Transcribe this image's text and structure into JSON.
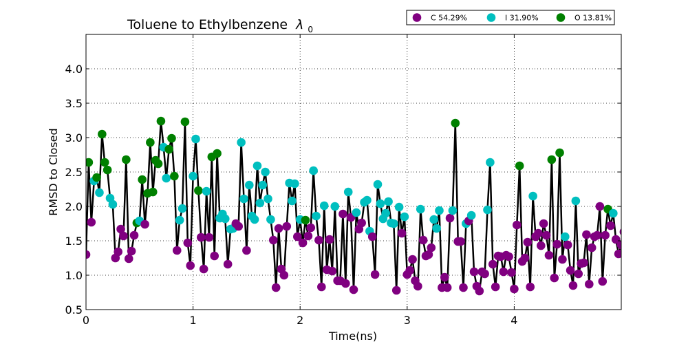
{
  "chart_data": {
    "type": "scatter",
    "title": "Toluene to Ethylbenzene",
    "title_symbol": "λ",
    "title_subscript": "0",
    "xlabel": "Time(ns)",
    "ylabel": "RMSD to Closed",
    "xlim": [
      0,
      5
    ],
    "ylim": [
      0.5,
      4.5
    ],
    "x_ticks": [
      "0",
      "1",
      "2",
      "3",
      "4"
    ],
    "y_ticks": [
      "0.5",
      "1.0",
      "1.5",
      "2.0",
      "2.5",
      "3.0",
      "3.5",
      "4.0"
    ],
    "grid": true,
    "legend_position": "top-right",
    "line_color": "#000000",
    "series": [
      {
        "name": "C 54.29%",
        "color": "#800080"
      },
      {
        "name": "I 31.90%",
        "color": "#00BFBF"
      },
      {
        "name": "O 13.81%",
        "color": "#008000"
      }
    ],
    "points": [
      [
        0.0,
        1.3,
        "C"
      ],
      [
        0.025,
        2.64,
        "O"
      ],
      [
        0.05,
        1.77,
        "C"
      ],
      [
        0.075,
        2.37,
        "I"
      ],
      [
        0.1,
        2.42,
        "O"
      ],
      [
        0.125,
        2.2,
        "I"
      ],
      [
        0.15,
        3.05,
        "O"
      ],
      [
        0.175,
        2.64,
        "O"
      ],
      [
        0.2,
        2.53,
        "O"
      ],
      [
        0.225,
        2.12,
        "I"
      ],
      [
        0.25,
        2.03,
        "I"
      ],
      [
        0.275,
        1.25,
        "C"
      ],
      [
        0.3,
        1.34,
        "C"
      ],
      [
        0.325,
        1.67,
        "C"
      ],
      [
        0.35,
        1.57,
        "C"
      ],
      [
        0.375,
        2.68,
        "O"
      ],
      [
        0.4,
        1.24,
        "C"
      ],
      [
        0.425,
        1.35,
        "C"
      ],
      [
        0.45,
        1.58,
        "C"
      ],
      [
        0.475,
        1.76,
        "O"
      ],
      [
        0.5,
        1.79,
        "I"
      ],
      [
        0.525,
        2.39,
        "O"
      ],
      [
        0.55,
        1.74,
        "C"
      ],
      [
        0.575,
        2.19,
        "O"
      ],
      [
        0.6,
        2.93,
        "O"
      ],
      [
        0.625,
        2.21,
        "O"
      ],
      [
        0.65,
        2.67,
        "O"
      ],
      [
        0.675,
        2.62,
        "O"
      ],
      [
        0.7,
        3.24,
        "O"
      ],
      [
        0.725,
        2.86,
        "I"
      ],
      [
        0.75,
        2.41,
        "I"
      ],
      [
        0.775,
        2.83,
        "O"
      ],
      [
        0.8,
        2.99,
        "O"
      ],
      [
        0.825,
        2.44,
        "O"
      ],
      [
        0.85,
        1.36,
        "C"
      ],
      [
        0.875,
        1.8,
        "I"
      ],
      [
        0.9,
        1.97,
        "I"
      ],
      [
        0.925,
        3.23,
        "O"
      ],
      [
        0.95,
        1.47,
        "C"
      ],
      [
        0.975,
        1.14,
        "C"
      ],
      [
        1.0,
        2.44,
        "I"
      ],
      [
        1.025,
        2.98,
        "I"
      ],
      [
        1.05,
        2.23,
        "O"
      ],
      [
        1.075,
        1.55,
        "C"
      ],
      [
        1.1,
        1.09,
        "C"
      ],
      [
        1.125,
        2.22,
        "I"
      ],
      [
        1.15,
        1.55,
        "C"
      ],
      [
        1.175,
        2.72,
        "O"
      ],
      [
        1.2,
        1.28,
        "C"
      ],
      [
        1.225,
        2.77,
        "O"
      ],
      [
        1.25,
        1.83,
        "I"
      ],
      [
        1.275,
        1.89,
        "I"
      ],
      [
        1.3,
        1.82,
        "I"
      ],
      [
        1.325,
        1.16,
        "C"
      ],
      [
        1.35,
        1.67,
        "I"
      ],
      [
        1.375,
        1.68,
        "I"
      ],
      [
        1.4,
        1.75,
        "C"
      ],
      [
        1.425,
        1.71,
        "C"
      ],
      [
        1.45,
        2.93,
        "I"
      ],
      [
        1.475,
        2.11,
        "I"
      ],
      [
        1.5,
        1.36,
        "C"
      ],
      [
        1.525,
        2.31,
        "I"
      ],
      [
        1.55,
        1.86,
        "I"
      ],
      [
        1.575,
        1.81,
        "I"
      ],
      [
        1.6,
        2.59,
        "I"
      ],
      [
        1.625,
        2.05,
        "I"
      ],
      [
        1.65,
        2.31,
        "I"
      ],
      [
        1.675,
        2.5,
        "I"
      ],
      [
        1.7,
        2.11,
        "I"
      ],
      [
        1.725,
        1.81,
        "I"
      ],
      [
        1.75,
        1.51,
        "C"
      ],
      [
        1.775,
        0.82,
        "C"
      ],
      [
        1.8,
        1.68,
        "C"
      ],
      [
        1.825,
        1.09,
        "C"
      ],
      [
        1.85,
        1.0,
        "C"
      ],
      [
        1.875,
        1.71,
        "C"
      ],
      [
        1.9,
        2.34,
        "I"
      ],
      [
        1.925,
        2.08,
        "I"
      ],
      [
        1.95,
        2.33,
        "I"
      ],
      [
        1.975,
        1.56,
        "C"
      ],
      [
        2.0,
        1.81,
        "I"
      ],
      [
        2.025,
        1.47,
        "C"
      ],
      [
        2.05,
        1.8,
        "O"
      ],
      [
        2.075,
        1.57,
        "C"
      ],
      [
        2.1,
        1.69,
        "C"
      ],
      [
        2.125,
        2.52,
        "I"
      ],
      [
        2.15,
        1.86,
        "I"
      ],
      [
        2.175,
        1.51,
        "C"
      ],
      [
        2.2,
        0.83,
        "C"
      ],
      [
        2.225,
        2.01,
        "I"
      ],
      [
        2.25,
        1.08,
        "C"
      ],
      [
        2.275,
        1.52,
        "C"
      ],
      [
        2.3,
        1.06,
        "C"
      ],
      [
        2.325,
        2.0,
        "I"
      ],
      [
        2.35,
        0.92,
        "C"
      ],
      [
        2.375,
        0.92,
        "C"
      ],
      [
        2.4,
        1.89,
        "C"
      ],
      [
        2.425,
        0.88,
        "C"
      ],
      [
        2.45,
        2.21,
        "I"
      ],
      [
        2.475,
        1.84,
        "C"
      ],
      [
        2.5,
        0.79,
        "C"
      ],
      [
        2.525,
        1.91,
        "I"
      ],
      [
        2.55,
        1.67,
        "C"
      ],
      [
        2.575,
        1.76,
        "C"
      ],
      [
        2.6,
        2.06,
        "I"
      ],
      [
        2.625,
        2.09,
        "I"
      ],
      [
        2.65,
        1.64,
        "I"
      ],
      [
        2.675,
        1.56,
        "C"
      ],
      [
        2.7,
        1.01,
        "C"
      ],
      [
        2.725,
        2.32,
        "I"
      ],
      [
        2.75,
        2.04,
        "I"
      ],
      [
        2.775,
        1.82,
        "I"
      ],
      [
        2.8,
        1.9,
        "I"
      ],
      [
        2.825,
        2.07,
        "I"
      ],
      [
        2.85,
        1.76,
        "I"
      ],
      [
        2.875,
        1.75,
        "I"
      ],
      [
        2.9,
        0.78,
        "C"
      ],
      [
        2.925,
        1.99,
        "I"
      ],
      [
        2.95,
        1.61,
        "C"
      ],
      [
        2.975,
        1.85,
        "I"
      ],
      [
        3.0,
        1.01,
        "C"
      ],
      [
        3.025,
        1.07,
        "C"
      ],
      [
        3.05,
        1.23,
        "C"
      ],
      [
        3.075,
        0.92,
        "C"
      ],
      [
        3.1,
        0.84,
        "C"
      ],
      [
        3.125,
        1.96,
        "I"
      ],
      [
        3.15,
        1.51,
        "C"
      ],
      [
        3.175,
        1.28,
        "C"
      ],
      [
        3.2,
        1.3,
        "C"
      ],
      [
        3.225,
        1.4,
        "C"
      ],
      [
        3.25,
        1.81,
        "I"
      ],
      [
        3.275,
        1.68,
        "I"
      ],
      [
        3.3,
        1.94,
        "I"
      ],
      [
        3.325,
        0.82,
        "C"
      ],
      [
        3.35,
        0.97,
        "C"
      ],
      [
        3.375,
        0.82,
        "C"
      ],
      [
        3.4,
        1.83,
        "C"
      ],
      [
        3.425,
        1.94,
        "I"
      ],
      [
        3.45,
        3.21,
        "O"
      ],
      [
        3.475,
        1.49,
        "C"
      ],
      [
        3.5,
        1.49,
        "C"
      ],
      [
        3.525,
        0.82,
        "C"
      ],
      [
        3.55,
        1.75,
        "I"
      ],
      [
        3.575,
        1.79,
        "C"
      ],
      [
        3.6,
        1.87,
        "I"
      ],
      [
        3.625,
        1.05,
        "C"
      ],
      [
        3.65,
        0.84,
        "C"
      ],
      [
        3.675,
        0.77,
        "C"
      ],
      [
        3.7,
        1.05,
        "C"
      ],
      [
        3.725,
        1.02,
        "C"
      ],
      [
        3.75,
        1.95,
        "I"
      ],
      [
        3.775,
        2.64,
        "I"
      ],
      [
        3.8,
        1.16,
        "C"
      ],
      [
        3.825,
        0.83,
        "C"
      ],
      [
        3.85,
        1.28,
        "C"
      ],
      [
        3.875,
        1.27,
        "C"
      ],
      [
        3.9,
        1.05,
        "C"
      ],
      [
        3.925,
        1.29,
        "C"
      ],
      [
        3.95,
        1.27,
        "C"
      ],
      [
        3.975,
        1.04,
        "C"
      ],
      [
        4.0,
        0.8,
        "C"
      ],
      [
        4.025,
        1.73,
        "C"
      ],
      [
        4.05,
        2.59,
        "O"
      ],
      [
        4.075,
        1.2,
        "C"
      ],
      [
        4.1,
        1.25,
        "C"
      ],
      [
        4.125,
        1.48,
        "C"
      ],
      [
        4.15,
        0.83,
        "C"
      ],
      [
        4.175,
        2.15,
        "I"
      ],
      [
        4.2,
        1.56,
        "C"
      ],
      [
        4.225,
        1.61,
        "C"
      ],
      [
        4.25,
        1.43,
        "C"
      ],
      [
        4.275,
        1.75,
        "C"
      ],
      [
        4.3,
        1.58,
        "C"
      ],
      [
        4.325,
        1.29,
        "C"
      ],
      [
        4.35,
        2.68,
        "O"
      ],
      [
        4.375,
        0.96,
        "C"
      ],
      [
        4.4,
        1.45,
        "C"
      ],
      [
        4.425,
        2.78,
        "O"
      ],
      [
        4.45,
        1.23,
        "C"
      ],
      [
        4.475,
        1.56,
        "I"
      ],
      [
        4.5,
        1.44,
        "C"
      ],
      [
        4.525,
        1.07,
        "C"
      ],
      [
        4.55,
        0.85,
        "C"
      ],
      [
        4.575,
        2.08,
        "I"
      ],
      [
        4.6,
        1.02,
        "C"
      ],
      [
        4.625,
        1.17,
        "C"
      ],
      [
        4.65,
        1.18,
        "C"
      ],
      [
        4.675,
        1.59,
        "C"
      ],
      [
        4.7,
        0.87,
        "C"
      ],
      [
        4.725,
        1.4,
        "C"
      ],
      [
        4.75,
        1.56,
        "C"
      ],
      [
        4.775,
        1.58,
        "C"
      ],
      [
        4.8,
        2.0,
        "C"
      ],
      [
        4.825,
        0.91,
        "C"
      ],
      [
        4.85,
        1.58,
        "C"
      ],
      [
        4.875,
        1.96,
        "O"
      ],
      [
        4.9,
        1.72,
        "C"
      ],
      [
        4.925,
        1.9,
        "I"
      ],
      [
        4.95,
        1.52,
        "C"
      ],
      [
        4.975,
        1.31,
        "C"
      ],
      [
        5.0,
        1.44,
        "C"
      ],
      [
        5.025,
        1.63,
        "C"
      ],
      [
        5.05,
        1.69,
        "C"
      ],
      [
        5.075,
        1.56,
        "C"
      ],
      [
        5.1,
        1.96,
        "I"
      ],
      [
        5.125,
        1.3,
        "C"
      ]
    ]
  }
}
